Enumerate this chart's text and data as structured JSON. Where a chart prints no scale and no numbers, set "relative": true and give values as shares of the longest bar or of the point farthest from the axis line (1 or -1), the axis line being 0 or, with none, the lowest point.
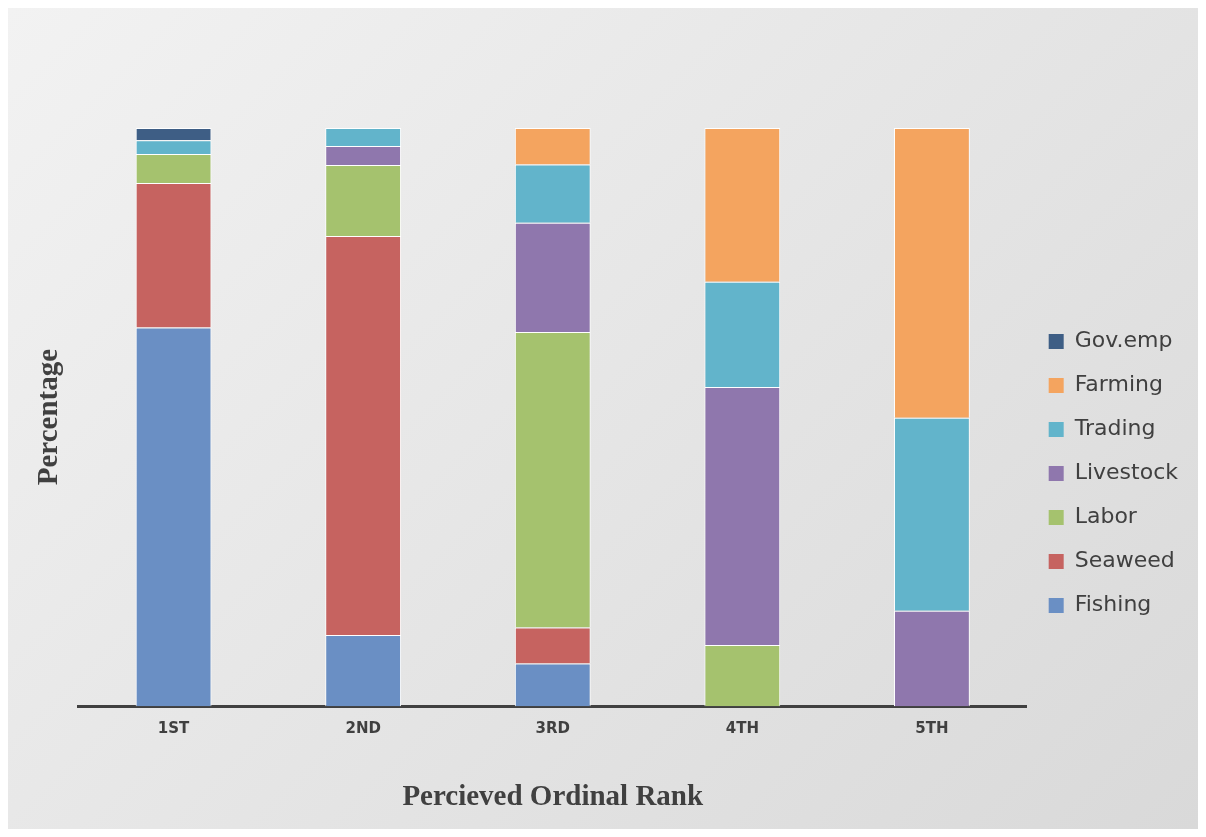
{
  "chart_data": {
    "type": "bar",
    "stacked": true,
    "relative": true,
    "categories": [
      "1ST",
      "2ND",
      "3RD",
      "4TH",
      "5TH"
    ],
    "xlabel": "Percieved Ordinal Rank",
    "ylabel": "Percentage",
    "series": [
      {
        "name": "Fishing",
        "color": "#6a8fc4",
        "values": [
          0.655,
          0.123,
          0.074,
          null,
          null
        ]
      },
      {
        "name": "Seaweed",
        "color": "#c66360",
        "values": [
          0.25,
          0.69,
          0.062,
          null,
          null
        ]
      },
      {
        "name": "Labor",
        "color": "#a5c26e",
        "values": [
          0.05,
          0.123,
          0.511,
          0.106,
          null
        ]
      },
      {
        "name": "Livestock",
        "color": "#8f77ad",
        "values": [
          null,
          0.033,
          0.189,
          0.446,
          0.165
        ]
      },
      {
        "name": "Trading",
        "color": "#62b4cb",
        "values": [
          0.024,
          0.031,
          0.101,
          0.182,
          0.334
        ]
      },
      {
        "name": "Farming",
        "color": "#f4a45f",
        "values": [
          null,
          null,
          0.063,
          0.266,
          0.501
        ]
      },
      {
        "name": "Gov.emp",
        "color": "#3e5e85",
        "values": [
          0.021,
          null,
          null,
          null,
          null
        ]
      }
    ],
    "grid": false,
    "legend": "right"
  }
}
